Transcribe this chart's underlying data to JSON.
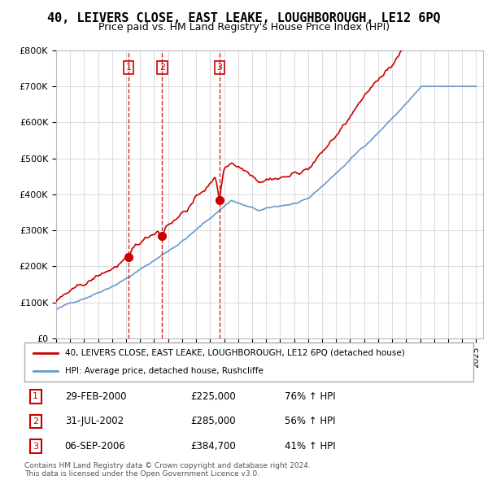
{
  "title": "40, LEIVERS CLOSE, EAST LEAKE, LOUGHBOROUGH, LE12 6PQ",
  "subtitle": "Price paid vs. HM Land Registry's House Price Index (HPI)",
  "title_fontsize": 11,
  "subtitle_fontsize": 9,
  "ylim": [
    0,
    800000
  ],
  "yticks": [
    0,
    100000,
    200000,
    300000,
    400000,
    500000,
    600000,
    700000,
    800000
  ],
  "ytick_labels": [
    "£0",
    "£100K",
    "£200K",
    "£300K",
    "£400K",
    "£500K",
    "£600K",
    "£700K",
    "£800K"
  ],
  "xlim_start": 1995.0,
  "xlim_end": 2025.5,
  "sale_dates": [
    2000.164,
    2002.577,
    2006.681
  ],
  "sale_prices": [
    225000,
    285000,
    384700
  ],
  "sale_labels": [
    "1",
    "2",
    "3"
  ],
  "legend_entries": [
    "40, LEIVERS CLOSE, EAST LEAKE, LOUGHBOROUGH, LE12 6PQ (detached house)",
    "HPI: Average price, detached house, Rushcliffe"
  ],
  "transaction_rows": [
    {
      "label": "1",
      "date": "29-FEB-2000",
      "price": "£225,000",
      "hpi": "76% ↑ HPI"
    },
    {
      "label": "2",
      "date": "31-JUL-2002",
      "price": "£285,000",
      "hpi": "56% ↑ HPI"
    },
    {
      "label": "3",
      "date": "06-SEP-2006",
      "price": "£384,700",
      "hpi": "41% ↑ HPI"
    }
  ],
  "footer": "Contains HM Land Registry data © Crown copyright and database right 2024.\nThis data is licensed under the Open Government Licence v3.0.",
  "line_color_red": "#cc0000",
  "line_color_blue": "#6699cc",
  "background_color": "#ffffff",
  "grid_color": "#dddddd"
}
